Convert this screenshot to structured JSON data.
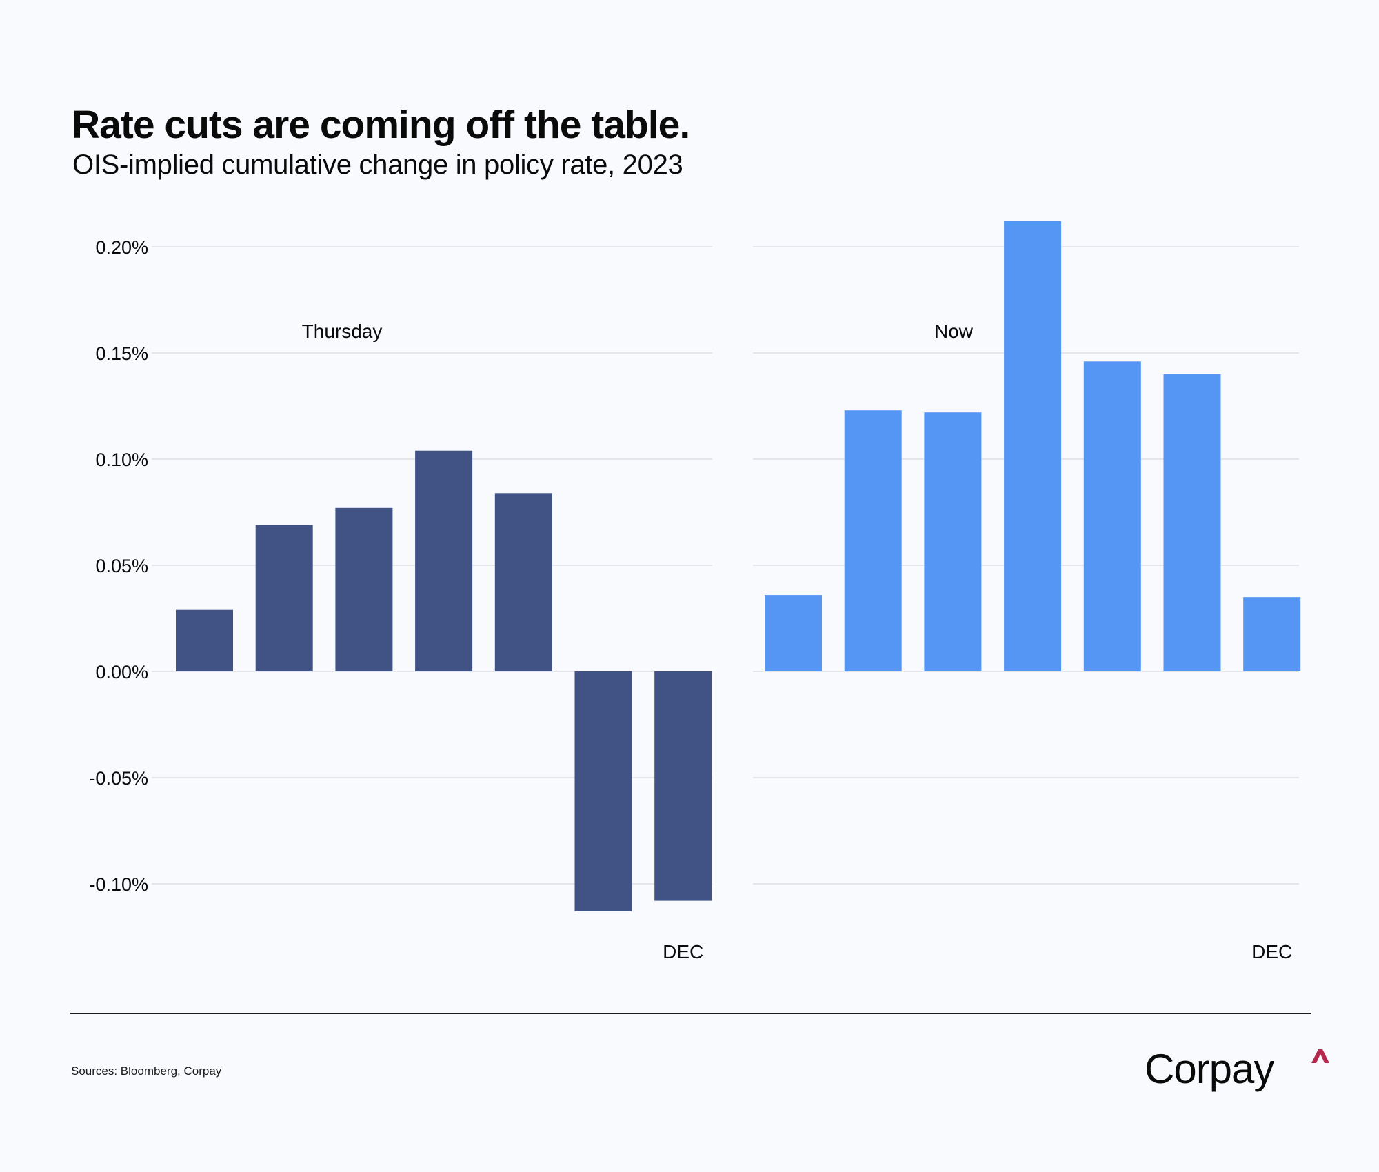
{
  "header": {
    "title": "Rate cuts are coming off the table.",
    "subtitle": "OIS-implied cumulative change in policy rate, 2023"
  },
  "chart_data": {
    "type": "bar",
    "title": "Rate cuts are coming off the table.",
    "subtitle": "OIS-implied cumulative change in policy rate, 2023",
    "xlabel": "",
    "ylabel": "",
    "ylim": [
      -0.1,
      0.2
    ],
    "yticks": [
      0.2,
      0.15,
      0.1,
      0.05,
      0.0,
      -0.05,
      -0.1
    ],
    "ytick_labels": [
      "0.20%",
      "0.15%",
      "0.10%",
      "0.05%",
      "0.00%",
      "-0.05%",
      "-0.10%"
    ],
    "grid": true,
    "unit": "%",
    "panels": [
      {
        "name": "Thursday",
        "color": "#415385",
        "categories": [
          "",
          "",
          "",
          "",
          "",
          "",
          "DEC"
        ],
        "values": [
          0.029,
          0.069,
          0.077,
          0.104,
          0.084,
          -0.113,
          -0.108
        ]
      },
      {
        "name": "Now",
        "color": "#5595f3",
        "categories": [
          "",
          "",
          "",
          "",
          "",
          "",
          "DEC"
        ],
        "values": [
          0.036,
          0.123,
          0.122,
          0.212,
          0.146,
          0.14,
          0.035
        ]
      }
    ]
  },
  "footer": {
    "sources": "Sources: Bloomberg, Corpay",
    "logo_text": "Corpay",
    "logo_accent_color": "#b5294e"
  }
}
